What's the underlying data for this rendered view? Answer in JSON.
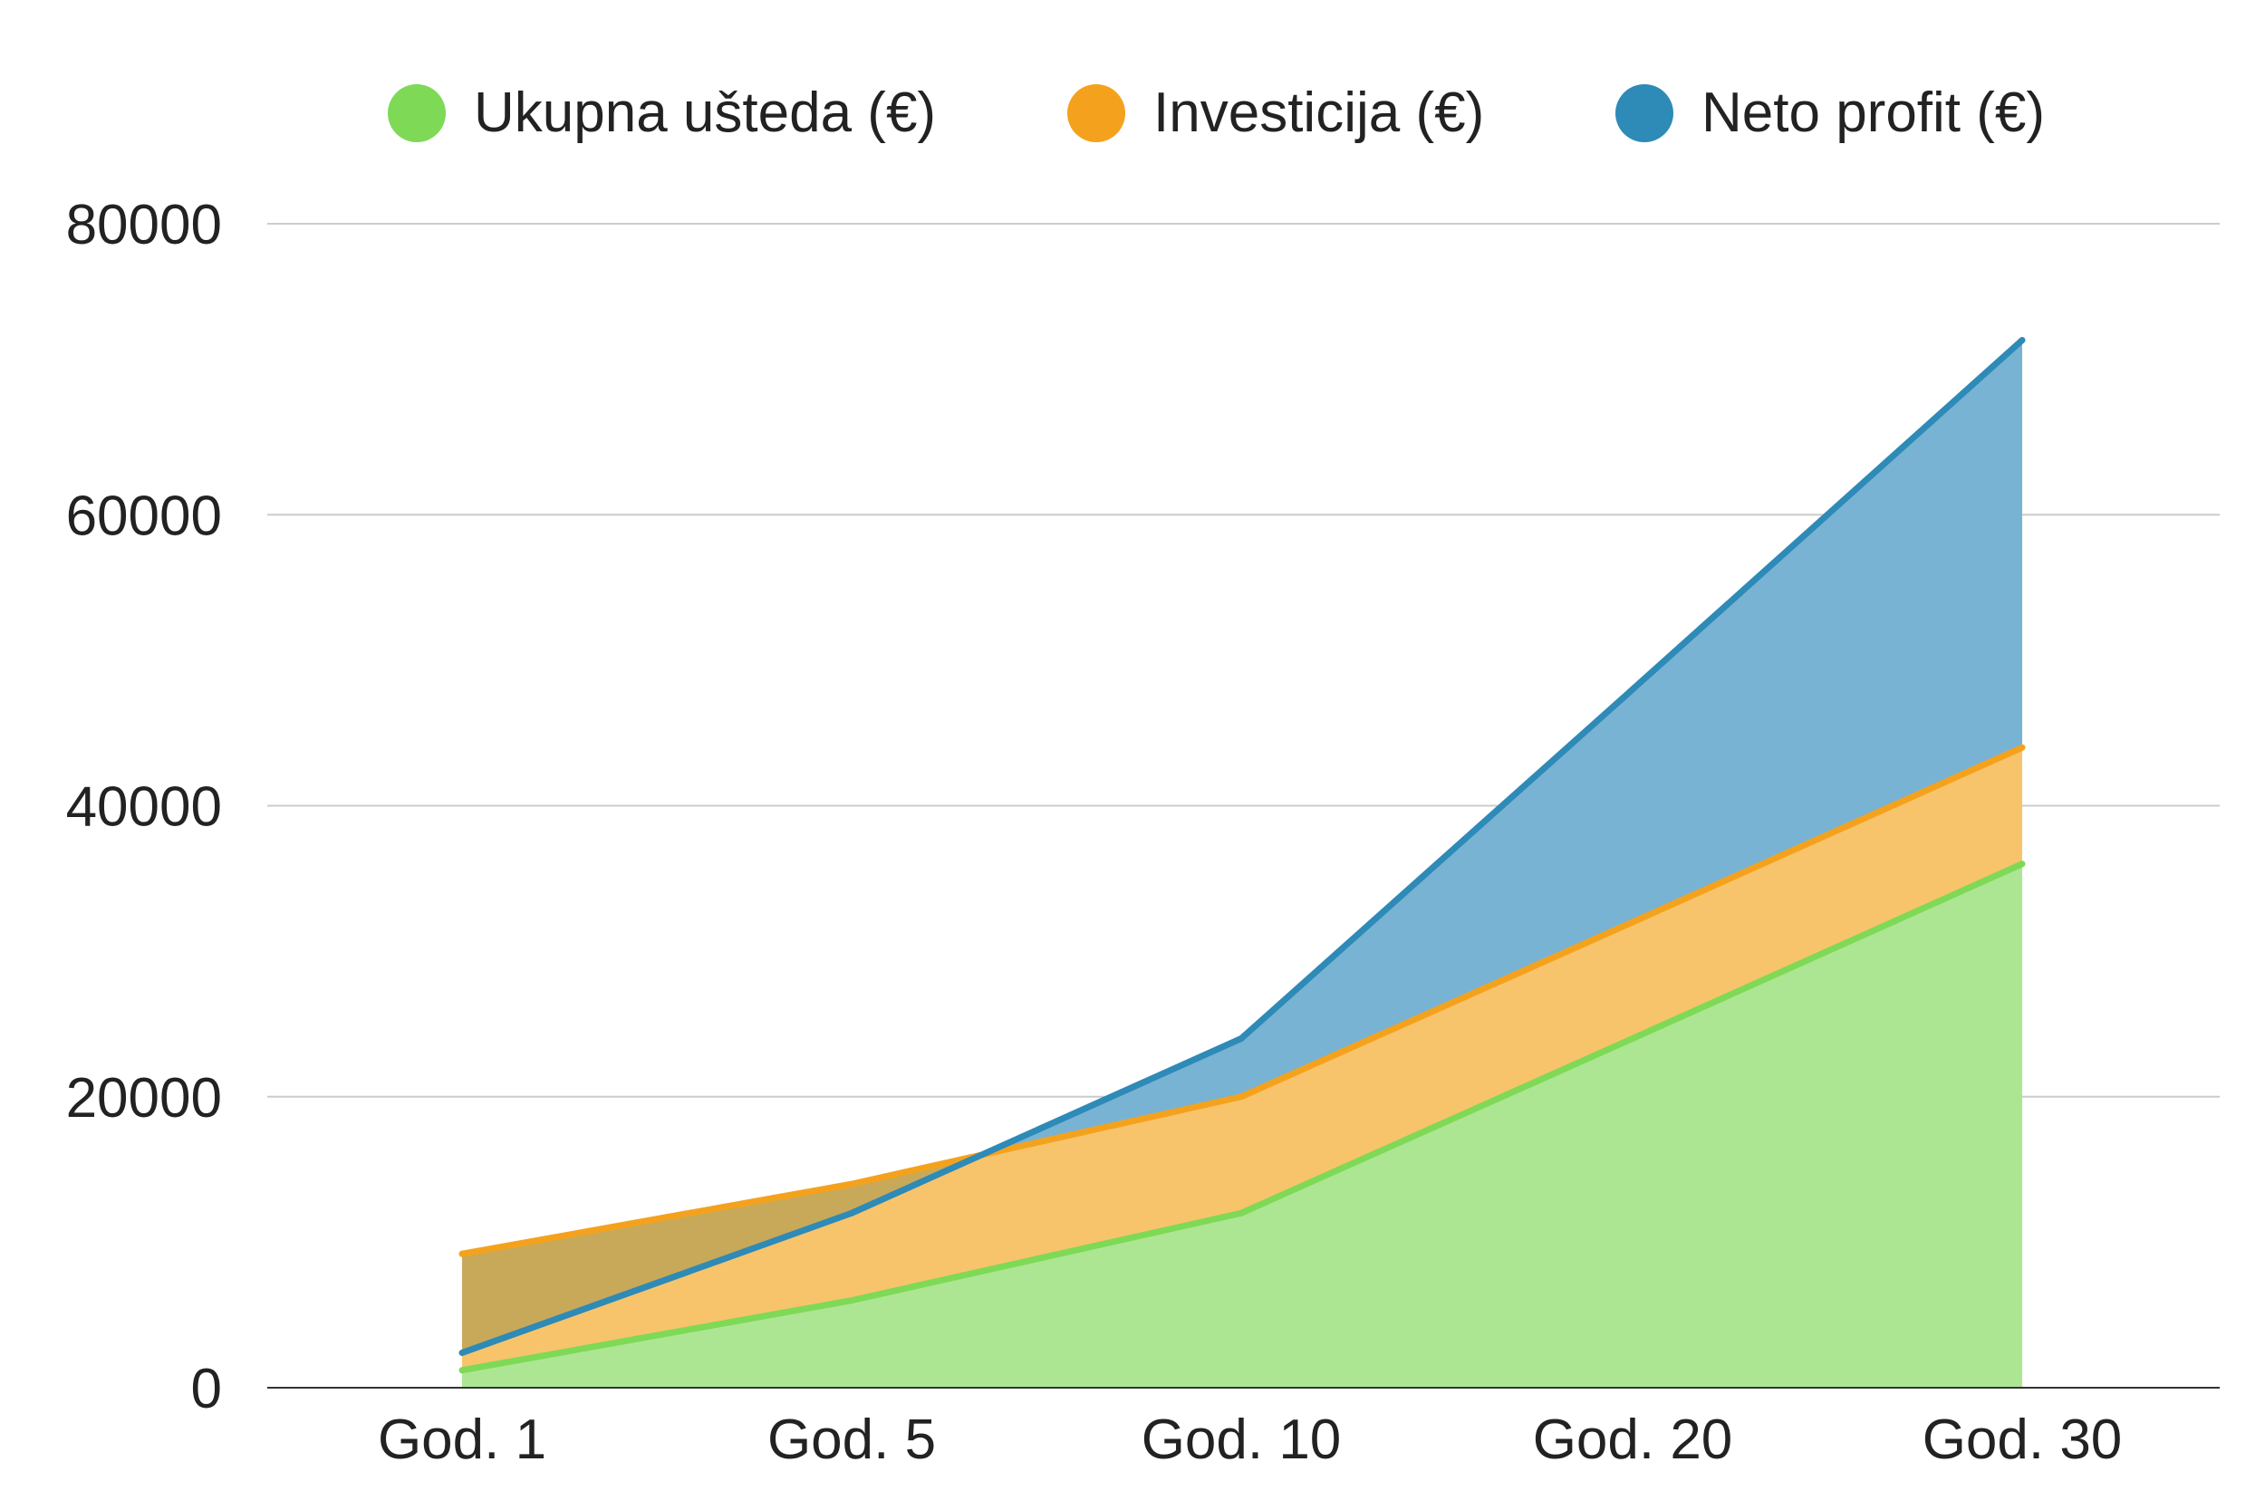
{
  "chart_data": {
    "type": "area",
    "categories": [
      "God. 1",
      "God. 5",
      "God. 10",
      "God. 20",
      "God. 30"
    ],
    "series": [
      {
        "name": "Ukupna ušteda (€)",
        "values": [
          1200,
          6000,
          12000,
          24000,
          36000
        ],
        "stroke": "#7ed957",
        "fill": "#ade693"
      },
      {
        "name": "Investicija (€)",
        "values": [
          9200,
          14000,
          20000,
          32000,
          44000
        ],
        "stroke": "#f4a21d",
        "fill": "#f7c46b"
      },
      {
        "name": "Neto profit (€)",
        "values": [
          2400,
          12000,
          24000,
          48000,
          72000
        ],
        "stroke": "#2e8ab7",
        "fill": "#78b3d4"
      }
    ],
    "overlap_fill": "#c8a95a",
    "ylim": [
      0,
      80000
    ],
    "yticks": [
      0,
      20000,
      40000,
      60000,
      80000
    ],
    "grid": true,
    "legend_position": "top"
  }
}
